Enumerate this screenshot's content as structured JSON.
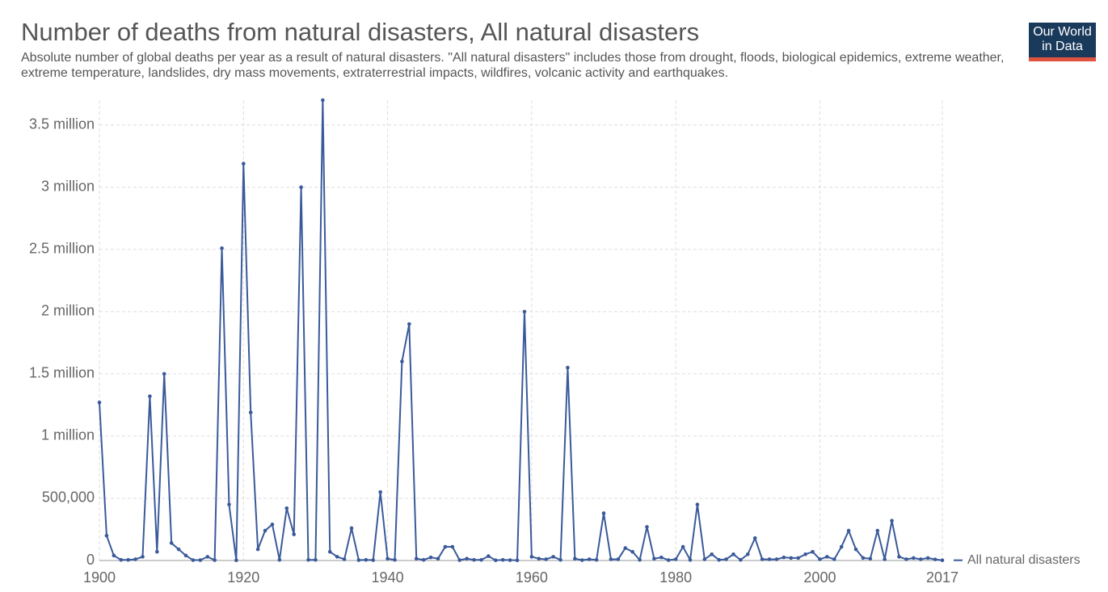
{
  "chart_data": {
    "type": "line",
    "title": "Number of deaths from natural disasters, All natural disasters",
    "subtitle": "Absolute number of global deaths per year as a result of natural disasters. \"All natural disasters\" includes those from drought, floods, biological epidemics, extreme weather, extreme temperature, landslides, dry mass movements, extraterrestrial impacts, wildfires, volcanic activity and earthquakes.",
    "logo": "Our World in Data",
    "x": [
      1900,
      1901,
      1902,
      1903,
      1904,
      1905,
      1906,
      1907,
      1908,
      1909,
      1910,
      1911,
      1912,
      1913,
      1914,
      1915,
      1916,
      1917,
      1918,
      1919,
      1920,
      1921,
      1922,
      1923,
      1924,
      1925,
      1926,
      1927,
      1928,
      1929,
      1930,
      1931,
      1932,
      1933,
      1934,
      1935,
      1936,
      1937,
      1938,
      1939,
      1940,
      1941,
      1942,
      1943,
      1944,
      1945,
      1946,
      1947,
      1948,
      1949,
      1950,
      1951,
      1952,
      1953,
      1954,
      1955,
      1956,
      1957,
      1958,
      1959,
      1960,
      1961,
      1962,
      1963,
      1964,
      1965,
      1966,
      1967,
      1968,
      1969,
      1970,
      1971,
      1972,
      1973,
      1974,
      1975,
      1976,
      1977,
      1978,
      1979,
      1980,
      1981,
      1982,
      1983,
      1984,
      1985,
      1986,
      1987,
      1988,
      1989,
      1990,
      1991,
      1992,
      1993,
      1994,
      1995,
      1996,
      1997,
      1998,
      1999,
      2000,
      2001,
      2002,
      2003,
      2004,
      2005,
      2006,
      2007,
      2008,
      2009,
      2010,
      2011,
      2012,
      2013,
      2014,
      2015,
      2016,
      2017
    ],
    "series": [
      {
        "name": "All natural disasters",
        "color": "#3a5a9a",
        "values": [
          1270000,
          200000,
          40000,
          5000,
          5000,
          10000,
          30000,
          1320000,
          70000,
          1500000,
          140000,
          90000,
          40000,
          3000,
          3000,
          30000,
          3000,
          2510000,
          450000,
          2000,
          3190000,
          1190000,
          90000,
          240000,
          290000,
          5000,
          420000,
          210000,
          3000000,
          5000,
          5000,
          3700000,
          70000,
          30000,
          10000,
          260000,
          3000,
          5000,
          3000,
          550000,
          15000,
          5000,
          1600000,
          1900000,
          15000,
          5000,
          25000,
          15000,
          110000,
          110000,
          3000,
          15000,
          5000,
          5000,
          35000,
          2000,
          5000,
          3000,
          2000,
          2000000,
          30000,
          15000,
          10000,
          30000,
          5000,
          1550000,
          15000,
          3000,
          10000,
          5000,
          380000,
          10000,
          10000,
          100000,
          70000,
          5000,
          270000,
          15000,
          25000,
          3000,
          10000,
          110000,
          5000,
          450000,
          10000,
          50000,
          5000,
          10000,
          50000,
          5000,
          50000,
          180000,
          10000,
          10000,
          10000,
          25000,
          20000,
          20000,
          50000,
          70000,
          10000,
          30000,
          10000,
          110000,
          240000,
          90000,
          20000,
          15000,
          240000,
          10000,
          320000,
          30000,
          10000,
          20000,
          10000,
          20000,
          9000,
          2000
        ]
      }
    ],
    "xlim": [
      1900,
      2017
    ],
    "xticks": [
      1900,
      1920,
      1940,
      1960,
      1980,
      2000,
      2017
    ],
    "ylim": [
      0,
      3700000
    ],
    "yticks": [
      0,
      {
        "value": 500000,
        "label": "500,000"
      },
      {
        "value": 1000000,
        "label": "1 million"
      },
      {
        "value": 1500000,
        "label": "1.5 million"
      },
      {
        "value": 2000000,
        "label": "2 million"
      },
      {
        "value": 2500000,
        "label": "2.5 million"
      },
      {
        "value": 3000000,
        "label": "3 million"
      },
      {
        "value": 3500000,
        "label": "3.5 million"
      }
    ],
    "grid": true
  }
}
